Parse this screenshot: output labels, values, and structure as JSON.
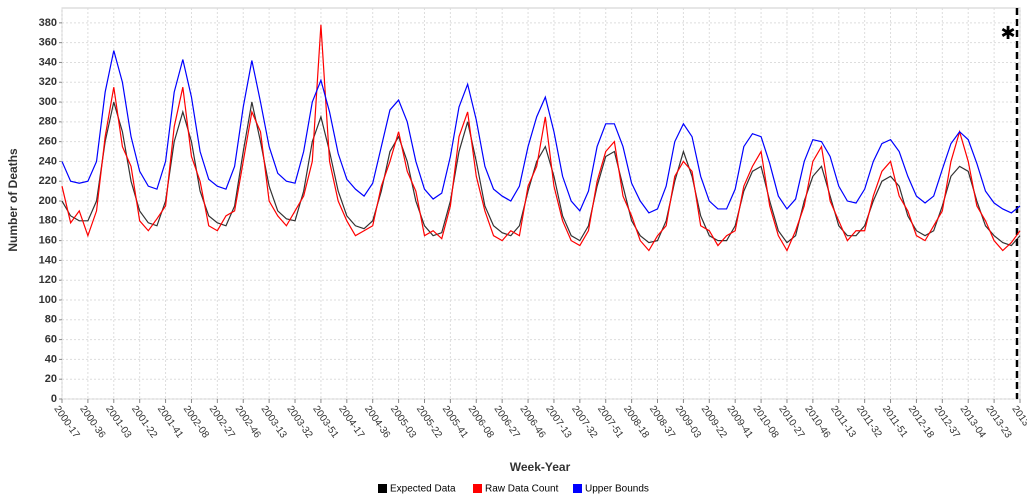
{
  "chart_data": {
    "type": "line",
    "x_label": "Week-Year",
    "y_label": "Number of Deaths",
    "annotation": "✱",
    "categories": [
      "2000-17",
      null,
      null,
      "2000-36",
      null,
      null,
      "2001-03",
      null,
      null,
      "2001-22",
      null,
      null,
      "2001-41",
      null,
      null,
      "2002-08",
      null,
      null,
      "2002-27",
      null,
      null,
      "2002-46",
      null,
      null,
      "2003-13",
      null,
      null,
      "2003-32",
      null,
      null,
      "2003-51",
      null,
      null,
      "2004-17",
      null,
      null,
      "2004-36",
      null,
      null,
      "2005-03",
      null,
      null,
      "2005-22",
      null,
      null,
      "2005-41",
      null,
      null,
      "2006-08",
      null,
      null,
      "2006-27",
      null,
      null,
      "2006-46",
      null,
      null,
      "2007-13",
      null,
      null,
      "2007-32",
      null,
      null,
      "2007-51",
      null,
      null,
      "2008-18",
      null,
      null,
      "2008-37",
      null,
      null,
      "2009-03",
      null,
      null,
      "2009-22",
      null,
      null,
      "2009-41",
      null,
      null,
      "2010-08",
      null,
      null,
      "2010-27",
      null,
      null,
      "2010-46",
      null,
      null,
      "2011-13",
      null,
      null,
      "2011-32",
      null,
      null,
      "2011-51",
      null,
      null,
      "2012-18",
      null,
      null,
      "2012-37",
      null,
      null,
      "2013-04",
      null,
      null,
      "2013-23",
      null,
      null,
      "2013-"
    ],
    "series": [
      {
        "name": "Expected Data",
        "color": "#000000",
        "values": [
          200,
          185,
          180,
          180,
          200,
          260,
          300,
          270,
          220,
          190,
          178,
          175,
          200,
          260,
          290,
          260,
          210,
          185,
          178,
          175,
          195,
          250,
          300,
          260,
          215,
          190,
          182,
          180,
          210,
          260,
          285,
          250,
          210,
          185,
          175,
          172,
          180,
          210,
          250,
          265,
          240,
          200,
          175,
          165,
          168,
          200,
          250,
          280,
          240,
          195,
          175,
          168,
          165,
          175,
          210,
          240,
          255,
          225,
          185,
          165,
          160,
          175,
          215,
          245,
          250,
          215,
          180,
          165,
          158,
          160,
          180,
          220,
          250,
          225,
          185,
          165,
          160,
          160,
          175,
          210,
          230,
          235,
          200,
          170,
          158,
          165,
          200,
          225,
          235,
          205,
          175,
          165,
          165,
          175,
          200,
          220,
          225,
          215,
          185,
          170,
          165,
          170,
          195,
          225,
          235,
          230,
          200,
          175,
          165,
          158,
          155,
          165
        ]
      },
      {
        "name": "Raw Data Count",
        "color": "#ff0000",
        "values": [
          215,
          178,
          190,
          165,
          190,
          265,
          315,
          255,
          235,
          180,
          170,
          182,
          195,
          275,
          315,
          245,
          220,
          175,
          170,
          185,
          190,
          240,
          290,
          270,
          200,
          185,
          175,
          190,
          205,
          240,
          378,
          240,
          200,
          180,
          165,
          170,
          175,
          215,
          240,
          270,
          230,
          210,
          165,
          170,
          162,
          195,
          265,
          290,
          225,
          190,
          165,
          160,
          170,
          165,
          215,
          235,
          285,
          215,
          180,
          160,
          155,
          170,
          220,
          250,
          260,
          205,
          185,
          160,
          150,
          165,
          175,
          225,
          240,
          230,
          175,
          170,
          155,
          165,
          170,
          215,
          235,
          250,
          195,
          165,
          150,
          170,
          195,
          240,
          255,
          200,
          180,
          160,
          170,
          170,
          205,
          230,
          240,
          205,
          190,
          165,
          160,
          175,
          190,
          240,
          270,
          240,
          195,
          180,
          160,
          150,
          158,
          170
        ]
      },
      {
        "name": "Upper Bounds",
        "color": "#0000ff",
        "values": [
          240,
          220,
          218,
          220,
          240,
          310,
          352,
          320,
          265,
          230,
          215,
          212,
          240,
          310,
          343,
          305,
          250,
          222,
          215,
          212,
          235,
          295,
          342,
          300,
          255,
          228,
          220,
          218,
          250,
          300,
          322,
          290,
          248,
          222,
          212,
          205,
          218,
          255,
          292,
          302,
          280,
          240,
          212,
          202,
          208,
          245,
          295,
          318,
          282,
          235,
          212,
          205,
          200,
          215,
          255,
          285,
          305,
          270,
          225,
          200,
          190,
          210,
          255,
          278,
          278,
          255,
          218,
          200,
          188,
          192,
          215,
          260,
          278,
          265,
          225,
          200,
          192,
          192,
          212,
          255,
          268,
          265,
          238,
          205,
          192,
          202,
          240,
          262,
          260,
          245,
          215,
          200,
          198,
          212,
          240,
          258,
          262,
          250,
          225,
          205,
          198,
          205,
          232,
          258,
          270,
          262,
          238,
          210,
          198,
          192,
          188,
          195
        ]
      }
    ],
    "ylim": [
      0,
      395
    ],
    "yticks": [
      0,
      20,
      40,
      60,
      80,
      100,
      120,
      140,
      160,
      180,
      200,
      220,
      240,
      260,
      280,
      300,
      320,
      340,
      360,
      380
    ],
    "grid": true
  }
}
